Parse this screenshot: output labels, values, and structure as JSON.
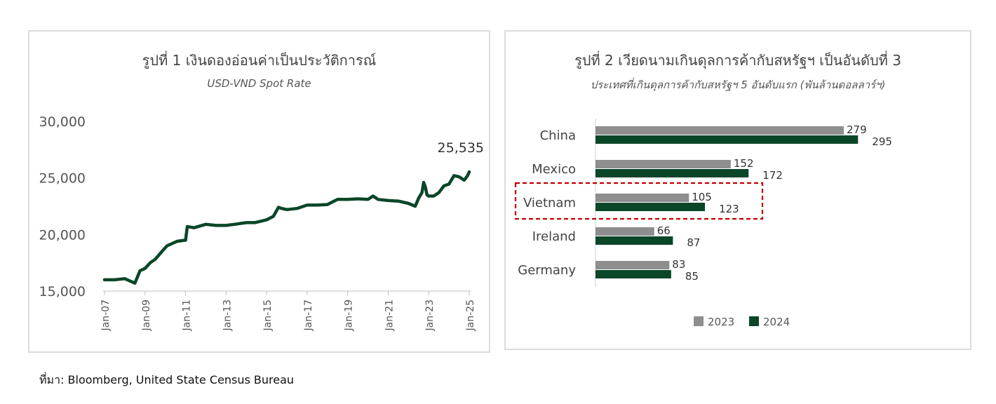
{
  "source_note": "ที่มา: Bloomberg, United State Census Bureau",
  "colors": {
    "dark_green": "#0a4628",
    "gray": "#8e8e8e",
    "highlight_red": "#c00000"
  },
  "chart_data": [
    {
      "type": "line",
      "title": "รูปที่ 1 เงินดองอ่อนค่าเป็นประวัติการณ์",
      "subtitle": "USD-VND Spot Rate",
      "x_ticks": [
        "Jan-07",
        "Jan-09",
        "Jan-11",
        "Jan-13",
        "Jan-15",
        "Jan-17",
        "Jan-19",
        "Jan-21",
        "Jan-23",
        "Jan-25"
      ],
      "y_ticks": [
        "15,000",
        "20,000",
        "25,000",
        "30,000"
      ],
      "ylim": [
        15000,
        30000
      ],
      "xlim": [
        "2007-01",
        "2025-01"
      ],
      "last_value_label": "25,535",
      "series": [
        {
          "x": [
            "2007-01",
            "2007-07",
            "2008-01",
            "2008-07",
            "2008-10",
            "2009-01",
            "2009-04",
            "2009-07",
            "2009-11",
            "2010-02",
            "2010-08",
            "2011-01",
            "2011-02",
            "2011-06",
            "2012-01",
            "2012-07",
            "2013-01",
            "2013-06",
            "2014-01",
            "2014-06",
            "2015-01",
            "2015-05",
            "2015-08",
            "2015-10",
            "2016-01",
            "2016-07",
            "2017-01",
            "2017-07",
            "2018-01",
            "2018-07",
            "2019-01",
            "2019-07",
            "2020-01",
            "2020-04",
            "2020-07",
            "2021-01",
            "2021-07",
            "2022-01",
            "2022-05",
            "2022-07",
            "2022-09",
            "2022-10",
            "2022-11",
            "2022-12",
            "2023-01",
            "2023-04",
            "2023-07",
            "2023-10",
            "2024-01",
            "2024-04",
            "2024-07",
            "2024-10",
            "2024-12",
            "2025-01"
          ],
          "y": [
            16000,
            16000,
            16100,
            15700,
            16800,
            17000,
            17500,
            17800,
            18500,
            19000,
            19400,
            19500,
            20700,
            20600,
            20900,
            20800,
            20800,
            20900,
            21050,
            21050,
            21300,
            21600,
            22400,
            22300,
            22200,
            22300,
            22600,
            22600,
            22650,
            23100,
            23100,
            23150,
            23100,
            23400,
            23100,
            23000,
            22950,
            22750,
            22500,
            23200,
            23700,
            24600,
            24200,
            23500,
            23400,
            23400,
            23700,
            24300,
            24450,
            25200,
            25100,
            24800,
            25200,
            25535
          ]
        }
      ]
    },
    {
      "type": "bar",
      "orientation": "horizontal",
      "title": "รูปที่ 2 เวียดนามเกินดุลการค้ากับสหรัฐฯ เป็นอันดับที่ 3",
      "subtitle": "ประเทศที่เกินดุลการค้ากับสหรัฐฯ 5 อันดับแรก (พันล้านดอลลาร์ฯ)",
      "categories": [
        "China",
        "Mexico",
        "Vietnam",
        "Ireland",
        "Germany"
      ],
      "highlight": "Vietnam",
      "legend_position": "bottom",
      "series": [
        {
          "name": "2023",
          "color": "#8e8e8e",
          "values": [
            279,
            152,
            105,
            66,
            83
          ]
        },
        {
          "name": "2024",
          "color": "#0a4628",
          "values": [
            295,
            172,
            123,
            87,
            85
          ]
        }
      ]
    }
  ]
}
